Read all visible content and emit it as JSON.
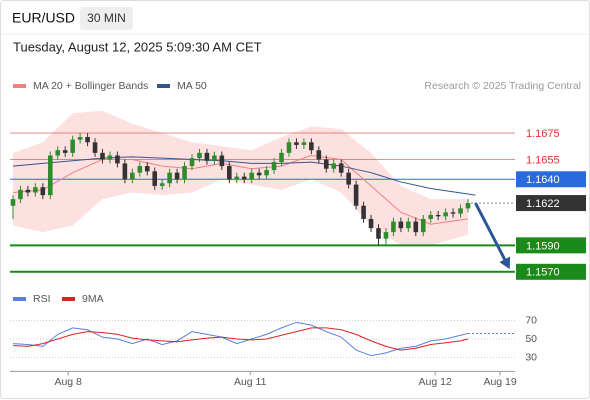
{
  "header": {
    "symbol": "EUR/USD",
    "timeframe": "30 MIN",
    "datetime": "Tuesday, August 12, 2025 5:09:30 AM CET"
  },
  "chart_data": [
    {
      "type": "candlestick",
      "note": "Research © 2025 Trading Central",
      "up_color": "#2e8b2e",
      "down_color": "#333333",
      "xlim": [
        -0.4,
        67.3
      ],
      "ylim": [
        1.156,
        1.17
      ],
      "open": [
        1.162,
        1.1625,
        1.1632,
        1.163,
        1.1634,
        1.1628,
        1.1658,
        1.1662,
        1.166,
        1.167,
        1.1672,
        1.1668,
        1.166,
        1.1655,
        1.1658,
        1.1652,
        1.164,
        1.1645,
        1.165,
        1.1646,
        1.1635,
        1.1637,
        1.1645,
        1.164,
        1.165,
        1.1656,
        1.166,
        1.1654,
        1.1658,
        1.165,
        1.164,
        1.1642,
        1.164,
        1.1645,
        1.1643,
        1.1647,
        1.1653,
        1.166,
        1.1668,
        1.1666,
        1.1668,
        1.1662,
        1.1655,
        1.1648,
        1.1652,
        1.1645,
        1.1636,
        1.162,
        1.161,
        1.1603,
        1.1595,
        1.16,
        1.1608,
        1.1603,
        1.1608,
        1.16,
        1.161,
        1.1613,
        1.1612,
        1.1615,
        1.1614,
        1.1618
      ],
      "high": [
        1.1628,
        1.1635,
        1.1635,
        1.1637,
        1.1637,
        1.1661,
        1.1665,
        1.1665,
        1.1673,
        1.1675,
        1.1675,
        1.1671,
        1.1663,
        1.1661,
        1.1661,
        1.1655,
        1.1648,
        1.1653,
        1.1653,
        1.1649,
        1.164,
        1.1648,
        1.1648,
        1.1653,
        1.1659,
        1.1663,
        1.1663,
        1.1661,
        1.1661,
        1.1653,
        1.1645,
        1.1645,
        1.1648,
        1.1648,
        1.165,
        1.1656,
        1.1663,
        1.1671,
        1.1671,
        1.1671,
        1.1671,
        1.1665,
        1.1658,
        1.1655,
        1.1655,
        1.1648,
        1.1639,
        1.1623,
        1.1613,
        1.1606,
        1.1603,
        1.1611,
        1.1611,
        1.1611,
        1.1611,
        1.1613,
        1.1616,
        1.1616,
        1.1618,
        1.1618,
        1.1621,
        1.1625
      ],
      "low": [
        1.161,
        1.1622,
        1.1627,
        1.1627,
        1.1625,
        1.1625,
        1.1655,
        1.1657,
        1.1657,
        1.1667,
        1.1665,
        1.1657,
        1.1652,
        1.1652,
        1.1649,
        1.1637,
        1.1637,
        1.1642,
        1.1643,
        1.1632,
        1.1632,
        1.1634,
        1.1637,
        1.1637,
        1.1647,
        1.1653,
        1.1651,
        1.1651,
        1.1647,
        1.1637,
        1.1637,
        1.1637,
        1.1637,
        1.164,
        1.164,
        1.1644,
        1.165,
        1.1657,
        1.1663,
        1.1663,
        1.1659,
        1.1652,
        1.1645,
        1.1645,
        1.1642,
        1.1633,
        1.1617,
        1.1607,
        1.16,
        1.159,
        1.159,
        1.1597,
        1.16,
        1.16,
        1.1597,
        1.1597,
        1.1607,
        1.1609,
        1.1609,
        1.1611,
        1.1611,
        1.1615
      ],
      "close": [
        1.1625,
        1.1632,
        1.163,
        1.1634,
        1.1628,
        1.1658,
        1.1662,
        1.166,
        1.167,
        1.1672,
        1.1668,
        1.166,
        1.1655,
        1.1658,
        1.1652,
        1.164,
        1.1645,
        1.165,
        1.1646,
        1.1635,
        1.1637,
        1.1645,
        1.164,
        1.165,
        1.1656,
        1.166,
        1.1654,
        1.1658,
        1.165,
        1.164,
        1.1642,
        1.164,
        1.1645,
        1.1643,
        1.1647,
        1.1653,
        1.166,
        1.1668,
        1.1666,
        1.1668,
        1.1662,
        1.1655,
        1.1648,
        1.1652,
        1.1645,
        1.1636,
        1.162,
        1.161,
        1.1603,
        1.1595,
        1.16,
        1.1608,
        1.1603,
        1.1608,
        1.16,
        1.161,
        1.1613,
        1.1612,
        1.1615,
        1.1614,
        1.1618,
        1.1622
      ],
      "series": [
        {
          "name": "MA 20 + Bollinger Bands",
          "color": "#f08080",
          "band_color": "#fde0e0",
          "x": [
            0,
            4,
            8,
            12,
            16,
            20,
            24,
            28,
            32,
            36,
            40,
            44,
            48,
            52,
            56,
            61
          ],
          "values": [
            1.163,
            1.1632,
            1.1645,
            1.1655,
            1.1655,
            1.165,
            1.1648,
            1.1652,
            1.1648,
            1.165,
            1.1658,
            1.1655,
            1.1635,
            1.1615,
            1.1606,
            1.161
          ],
          "upper": [
            1.166,
            1.1668,
            1.169,
            1.1692,
            1.1682,
            1.1675,
            1.1668,
            1.1665,
            1.1662,
            1.1672,
            1.168,
            1.1678,
            1.166,
            1.1635,
            1.1625,
            1.1625
          ],
          "lower": [
            1.1605,
            1.16,
            1.1605,
            1.1625,
            1.163,
            1.1628,
            1.163,
            1.164,
            1.1636,
            1.1632,
            1.164,
            1.163,
            1.1605,
            1.159,
            1.159,
            1.1598
          ]
        },
        {
          "name": "MA 50",
          "color": "#34558b",
          "x": [
            0,
            4,
            8,
            12,
            16,
            20,
            24,
            28,
            32,
            36,
            40,
            44,
            48,
            52,
            56,
            62
          ],
          "values": [
            1.165,
            1.1652,
            1.1654,
            1.1656,
            1.1657,
            1.1656,
            1.1655,
            1.1654,
            1.1652,
            1.1652,
            1.1653,
            1.165,
            1.1645,
            1.1638,
            1.1633,
            1.1628
          ]
        }
      ],
      "levels": [
        {
          "value": 1.1675,
          "label": "1.1675",
          "color": "#e03030",
          "boxed": false,
          "dotted": false
        },
        {
          "value": 1.1655,
          "label": "1.1655",
          "color": "#e03030",
          "boxed": false,
          "dotted": false
        },
        {
          "value": 1.164,
          "label": "1.1640",
          "color": "#2a6ae0",
          "boxed": true,
          "dotted": false
        },
        {
          "value": 1.1622,
          "label": "1.1622",
          "color": "#333333",
          "boxed": true,
          "dotted": true
        },
        {
          "value": 1.159,
          "label": "1.1590",
          "color": "#1a8a1a",
          "boxed": true,
          "dotted": false
        },
        {
          "value": 1.157,
          "label": "1.1570",
          "color": "#1a8a1a",
          "boxed": true,
          "dotted": false
        }
      ],
      "forecast": {
        "color": "#2b5797",
        "x": [
          62,
          66.6
        ],
        "y": [
          1.1622,
          1.1572
        ]
      }
    },
    {
      "type": "line",
      "xlim": [
        -0.4,
        67.3
      ],
      "ylim": [
        15,
        85
      ],
      "yticks": [
        30,
        50,
        70
      ],
      "xticks": [
        {
          "value": 7.4,
          "label": "Aug 8"
        },
        {
          "value": 31.8,
          "label": "Aug 11"
        },
        {
          "value": 56.6,
          "label": "Aug 12"
        },
        {
          "value": 65.3,
          "label": "Aug 19"
        }
      ],
      "x": [
        0,
        2,
        4,
        6,
        8,
        10,
        12,
        14,
        16,
        18,
        20,
        22,
        24,
        26,
        28,
        30,
        32,
        34,
        36,
        38,
        40,
        42,
        44,
        46,
        48,
        50,
        52,
        54,
        56,
        58,
        60,
        61
      ],
      "series": [
        {
          "name": "RSI",
          "color": "#5b7fe0",
          "values": [
            45,
            44,
            42,
            55,
            62,
            60,
            52,
            50,
            45,
            50,
            44,
            48,
            58,
            55,
            52,
            45,
            50,
            55,
            62,
            68,
            65,
            58,
            52,
            38,
            32,
            35,
            40,
            42,
            48,
            50,
            54,
            56
          ]
        },
        {
          "name": "9MA",
          "color": "#dd2222",
          "values": [
            43,
            42,
            45,
            50,
            55,
            58,
            57,
            55,
            51,
            49,
            48,
            47,
            49,
            51,
            52,
            50,
            49,
            50,
            54,
            58,
            62,
            62,
            60,
            55,
            48,
            42,
            38,
            40,
            44,
            46,
            48,
            50
          ]
        }
      ]
    }
  ]
}
